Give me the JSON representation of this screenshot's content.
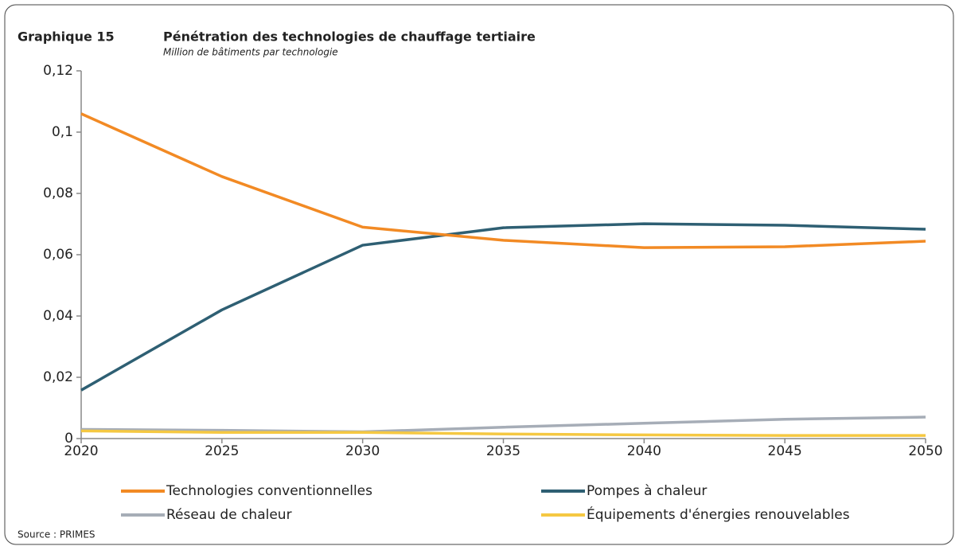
{
  "chart_data": {
    "type": "line",
    "figure_label": "Graphique 15",
    "title": "Pénétration des technologies de chauffage tertiaire",
    "subtitle": "Million de bâtiments par technologie",
    "source": "Source : PRIMES",
    "x": [
      2020,
      2025,
      2030,
      2035,
      2040,
      2045,
      2050
    ],
    "xlim": [
      2020,
      2050
    ],
    "xticks": [
      2020,
      2025,
      2030,
      2035,
      2040,
      2045,
      2050
    ],
    "ylim": [
      0,
      0.12
    ],
    "yticks": [
      0,
      {
        "value": 0.02,
        "label": "0,02"
      },
      {
        "value": 0.04,
        "label": "0,04"
      },
      {
        "value": 0.06,
        "label": "0,06"
      },
      {
        "value": 0.08,
        "label": "0,08"
      },
      {
        "value": 0.1,
        "label": "0,1"
      },
      {
        "value": 0.12,
        "label": "0,12"
      }
    ],
    "grid": false,
    "series": [
      {
        "name": "Technologies conventionnelles",
        "color": "#f28a24",
        "values": [
          0.106,
          0.0855,
          0.069,
          0.0647,
          0.0623,
          0.0626,
          0.0644
        ]
      },
      {
        "name": "Pompes à chaleur",
        "color": "#2e5f73",
        "values": [
          0.0158,
          0.042,
          0.0631,
          0.0688,
          0.0701,
          0.0696,
          0.0683
        ]
      },
      {
        "name": "Réseau de chaleur",
        "color": "#a6adb7",
        "values": [
          0.003,
          0.0027,
          0.0022,
          0.0037,
          0.005,
          0.0063,
          0.007
        ]
      },
      {
        "name": "Équipements d'énergies renouvelables",
        "color": "#f5c842",
        "values": [
          0.0025,
          0.002,
          0.002,
          0.0015,
          0.0012,
          0.001,
          0.001
        ]
      }
    ]
  }
}
